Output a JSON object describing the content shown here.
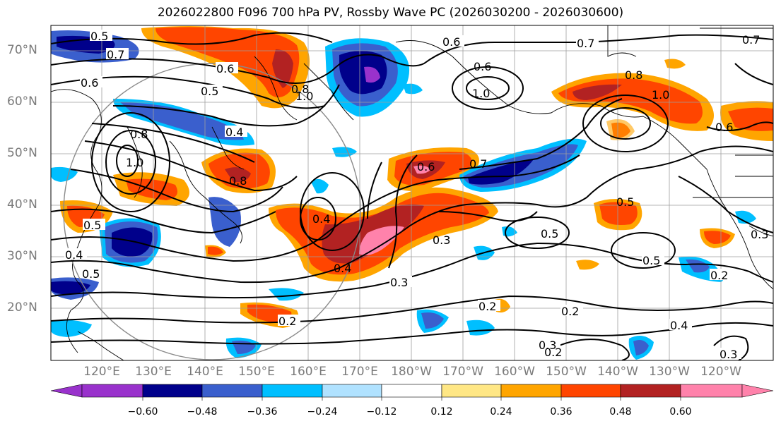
{
  "title": "2026022800 F096 700 hPa PV, Rossby Wave PC (2026030200 - 2026030600)",
  "latitude_labels": [
    "70°N",
    "60°N",
    "50°N",
    "40°N",
    "30°N",
    "20°N"
  ],
  "longitude_labels": [
    "120°E",
    "130°E",
    "140°E",
    "150°E",
    "160°E",
    "170°E",
    "180°W",
    "170°W",
    "160°W",
    "150°W",
    "140°W",
    "130°W",
    "120°W"
  ],
  "colorbar": {
    "ticks": [
      "−0.60",
      "−0.48",
      "−0.36",
      "−0.24",
      "−0.12",
      "0.12",
      "0.24",
      "0.36",
      "0.48",
      "0.60"
    ],
    "colors": [
      "#9932cc",
      "#00008b",
      "#3a5fcd",
      "#00bfff",
      "#b0e2ff",
      "#ffffff",
      "#ffe785",
      "#ffa500",
      "#ff4500",
      "#b22222",
      "#ff82ab"
    ]
  },
  "contour_labels": [
    "0.5",
    "0.7",
    "0.6",
    "0.6",
    "0.5",
    "0.4",
    "0.8",
    "0.6",
    "1.0",
    "0.6",
    "0.7",
    "0.8",
    "1.0",
    "0.7",
    "0.6",
    "0.7",
    "1.0",
    "0.8",
    "0.5",
    "0.4",
    "0.4",
    "0.3",
    "0.3",
    "0.4",
    "0.5",
    "0.5",
    "0.5",
    "0.2",
    "0.2",
    "0.2",
    "0.2",
    "0.3",
    "0.4",
    "0.3",
    "0.2",
    "0.3",
    "1.0",
    "0.6",
    "0.8",
    "0.5"
  ]
}
